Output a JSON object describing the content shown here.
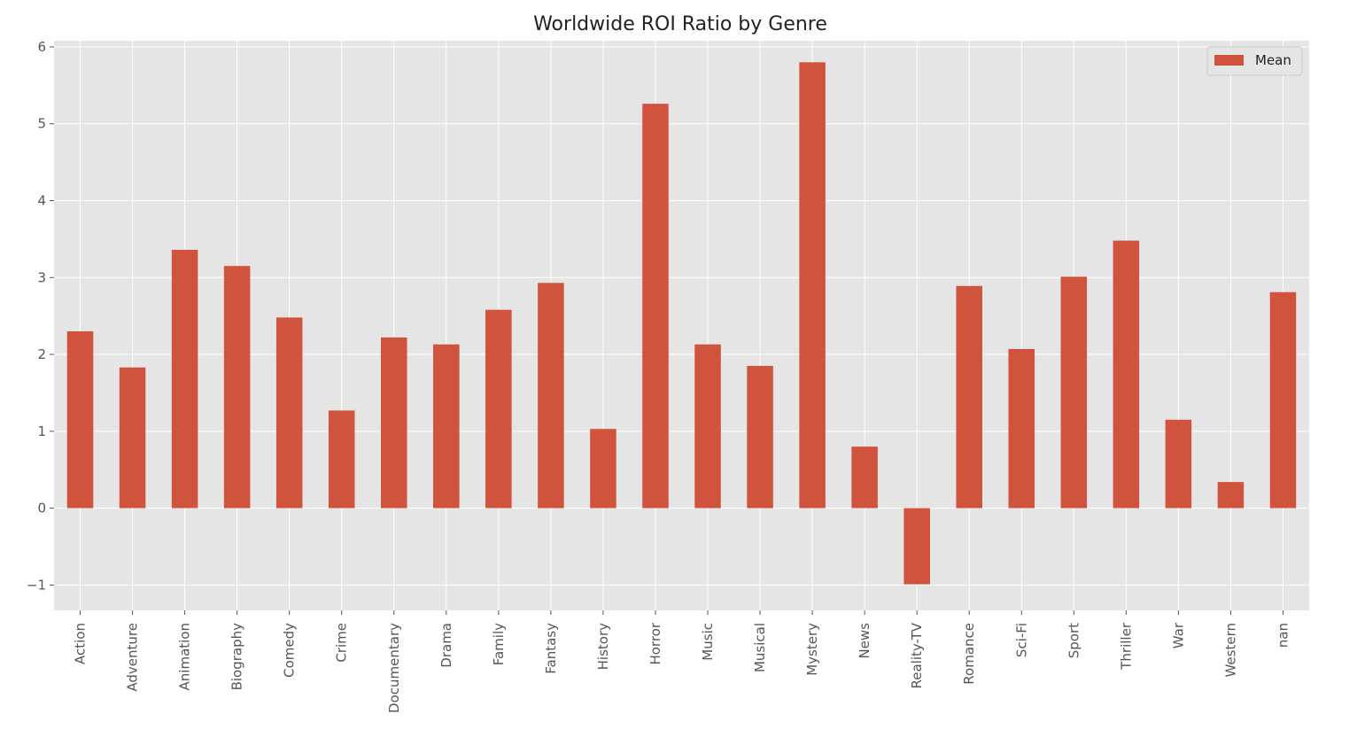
{
  "chart_data": {
    "type": "bar",
    "title": "Worldwide ROI Ratio by Genre",
    "xlabel": "",
    "ylabel": "",
    "categories": [
      "Action",
      "Adventure",
      "Animation",
      "Biography",
      "Comedy",
      "Crime",
      "Documentary",
      "Drama",
      "Family",
      "Fantasy",
      "History",
      "Horror",
      "Music",
      "Musical",
      "Mystery",
      "News",
      "Reality-TV",
      "Romance",
      "Sci-Fi",
      "Sport",
      "Thriller",
      "War",
      "Western",
      "nan"
    ],
    "series": [
      {
        "name": "Mean",
        "color": "#d0533d",
        "values": [
          2.3,
          1.83,
          3.36,
          3.15,
          2.48,
          1.27,
          2.22,
          2.13,
          2.58,
          2.93,
          1.03,
          5.26,
          2.13,
          1.85,
          5.8,
          0.8,
          -0.99,
          2.89,
          2.07,
          3.01,
          3.48,
          1.15,
          0.34,
          2.81
        ]
      }
    ],
    "ylim": [
      -1.33,
      6.08
    ],
    "yticks": [
      -1,
      0,
      1,
      2,
      3,
      4,
      5,
      6
    ],
    "ytick_labels": [
      "−1",
      "0",
      "1",
      "2",
      "3",
      "4",
      "5",
      "6"
    ],
    "grid": true,
    "legend_position": "top-right",
    "background_color": "#e5e5e5",
    "grid_color": "#ffffff"
  }
}
